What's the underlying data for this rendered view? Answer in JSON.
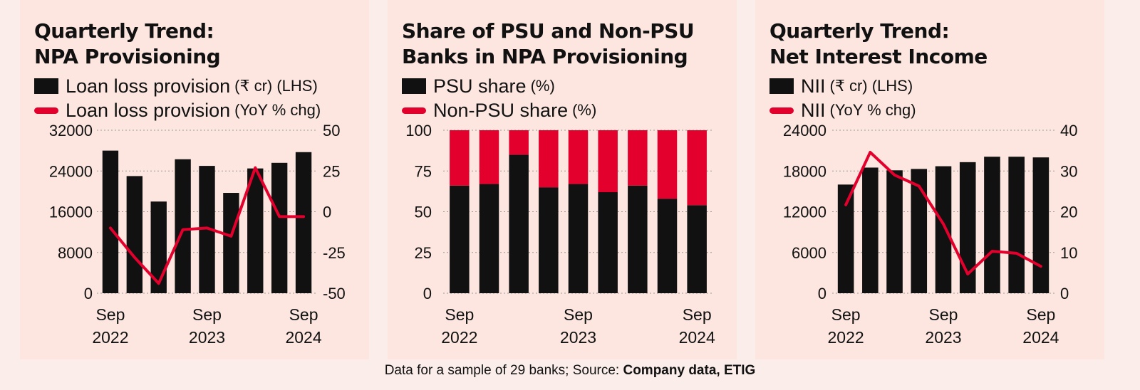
{
  "colors": {
    "bar": "#111111",
    "line": "#e3002d",
    "grid": "#999999",
    "panel": "#fce6df"
  },
  "panels": [
    {
      "title_line1": "Quarterly Trend:",
      "title_line2": "NPA Provisioning",
      "legend": [
        {
          "label": "Loan loss provision",
          "unit": "(₹ cr) (LHS)",
          "kind": "bar"
        },
        {
          "label": "Loan loss provision",
          "unit": "(YoY % chg)",
          "kind": "line"
        }
      ]
    },
    {
      "title_line1": "Share of PSU and Non-PSU",
      "title_line2": "Banks in NPA Provisioning",
      "legend": [
        {
          "label": "PSU share",
          "unit": "(%)",
          "kind": "bar"
        },
        {
          "label": "Non-PSU share",
          "unit": "(%)",
          "kind": "line"
        }
      ]
    },
    {
      "title_line1": "Quarterly Trend:",
      "title_line2": "Net Interest Income",
      "legend": [
        {
          "label": "NII",
          "unit": "(₹ cr) (LHS)",
          "kind": "bar"
        },
        {
          "label": "NII",
          "unit": "(YoY % chg)",
          "kind": "line"
        }
      ]
    }
  ],
  "footer": {
    "text": "Data for a sample of 29 banks;   Source: ",
    "bold": "Company data, ETIG"
  },
  "chart_data": [
    {
      "type": "bar",
      "title": "Quarterly Trend: NPA Provisioning",
      "categories": [
        "Sep 2022",
        "Dec 2022",
        "Mar 2023",
        "Jun 2023",
        "Sep 2023",
        "Dec 2023",
        "Mar 2024",
        "Jun 2024",
        "Sep 2024"
      ],
      "x_tick_labels": [
        [
          "Sep",
          "2022"
        ],
        [
          "",
          ""
        ],
        [
          "",
          ""
        ],
        [
          "",
          ""
        ],
        [
          "Sep",
          "2023"
        ],
        [
          "",
          ""
        ],
        [
          "",
          ""
        ],
        [
          "",
          ""
        ],
        [
          "Sep",
          "2024"
        ]
      ],
      "series": [
        {
          "name": "Loan loss provision (₹ cr) (LHS)",
          "type": "bar",
          "axis": "left",
          "values": [
            28000,
            23000,
            18000,
            26300,
            25000,
            19700,
            24500,
            25600,
            27700
          ]
        },
        {
          "name": "Loan loss provision (YoY % chg)",
          "type": "line",
          "axis": "right",
          "values": [
            -10,
            -28,
            -44,
            -11,
            -10,
            -15,
            27,
            -3,
            -3
          ]
        }
      ],
      "ylim": [
        0,
        32000
      ],
      "yticks": [
        0,
        8000,
        16000,
        24000,
        32000
      ],
      "y2lim": [
        -50,
        50
      ],
      "y2ticks": [
        -50,
        -25,
        0,
        25,
        50
      ],
      "grid": true
    },
    {
      "type": "bar",
      "title": "Share of PSU and Non-PSU Banks in NPA Provisioning",
      "stacked": true,
      "categories": [
        "Sep 2022",
        "Dec 2022",
        "Mar 2023",
        "Jun 2023",
        "Sep 2023",
        "Dec 2023",
        "Mar 2024",
        "Jun 2024",
        "Sep 2024"
      ],
      "x_tick_labels": [
        [
          "Sep",
          "2022"
        ],
        [
          "",
          ""
        ],
        [
          "",
          ""
        ],
        [
          "",
          ""
        ],
        [
          "Sep",
          "2023"
        ],
        [
          "",
          ""
        ],
        [
          "",
          ""
        ],
        [
          "",
          ""
        ],
        [
          "Sep",
          "2024"
        ]
      ],
      "series": [
        {
          "name": "PSU share (%)",
          "values": [
            66,
            67,
            85,
            65,
            67,
            62,
            66,
            58,
            54
          ]
        },
        {
          "name": "Non-PSU share (%)",
          "values": [
            34,
            33,
            15,
            35,
            33,
            38,
            34,
            42,
            46
          ]
        }
      ],
      "ylim": [
        0,
        100
      ],
      "yticks": [
        0,
        25,
        50,
        75,
        100
      ],
      "grid": true
    },
    {
      "type": "bar",
      "title": "Quarterly Trend: Net Interest Income",
      "categories": [
        "Sep 2022",
        "Dec 2022",
        "Mar 2023",
        "Jun 2023",
        "Sep 2023",
        "Dec 2023",
        "Mar 2024",
        "Jun 2024",
        "Sep 2024"
      ],
      "x_tick_labels": [
        [
          "Sep",
          "2022"
        ],
        [
          "",
          ""
        ],
        [
          "",
          ""
        ],
        [
          "",
          ""
        ],
        [
          "Sep",
          "2023"
        ],
        [
          "",
          ""
        ],
        [
          "",
          ""
        ],
        [
          "",
          ""
        ],
        [
          "Sep",
          "2024"
        ]
      ],
      "series": [
        {
          "name": "NII (₹ cr) (LHS)",
          "type": "bar",
          "axis": "left",
          "values": [
            16000,
            18500,
            18100,
            18300,
            18700,
            19300,
            20100,
            20100,
            20000
          ]
        },
        {
          "name": "NII (YoY % chg)",
          "type": "line",
          "axis": "right",
          "values": [
            21.7,
            34.6,
            29,
            26.3,
            17,
            4.7,
            10.3,
            9.8,
            6.6
          ]
        }
      ],
      "ylim": [
        0,
        24000
      ],
      "yticks": [
        0,
        6000,
        12000,
        18000,
        24000
      ],
      "y2lim": [
        0,
        40
      ],
      "y2ticks": [
        0,
        10,
        20,
        30,
        40
      ],
      "grid": true
    }
  ]
}
